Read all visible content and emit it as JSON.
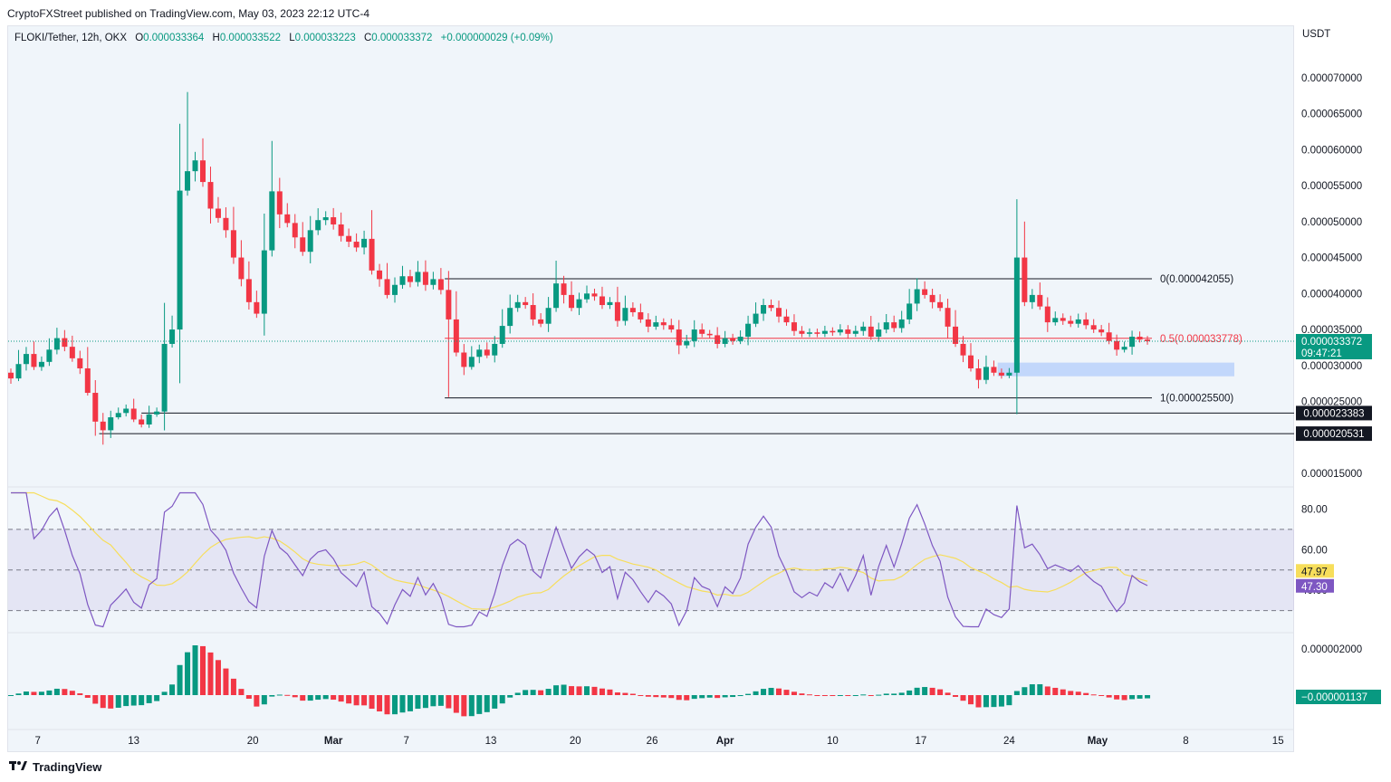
{
  "header": {
    "published": "CryptoFXStreet published on TradingView.com, May 03, 2023 22:12 UTC-4"
  },
  "legend": {
    "symbol": "FLOKI/Tether, 12h, OKX",
    "o_label": "O",
    "o": "0.000033364",
    "h_label": "H",
    "h": "0.000033522",
    "l_label": "L",
    "l": "0.000033223",
    "c_label": "C",
    "c": "0.000033372",
    "change": "+0.000000029 (+0.09%)"
  },
  "footer": {
    "brand": "TradingView"
  },
  "colors": {
    "up": "#089981",
    "down": "#f23645",
    "rsi": "#7e57c2",
    "rsi_ma": "#f7de5b",
    "zone": "#bdd4fb",
    "fib_mid": "#f23645",
    "bg": "#f0f5fa"
  },
  "chart_data": [
    {
      "type": "candlestick",
      "currency_label": "USDT",
      "y_ticks": [
        "0.000070000",
        "0.000065000",
        "0.000060000",
        "0.000055000",
        "0.000050000",
        "0.000045000",
        "0.000040000",
        "0.000035000",
        "0.000030000",
        "0.000025000",
        "0.000015000"
      ],
      "x_ticks": [
        "7",
        "13",
        "20",
        "Mar",
        "7",
        "13",
        "20",
        "26",
        "Apr",
        "10",
        "17",
        "24",
        "May",
        "8",
        "15"
      ],
      "ylim": [
        1.35e-05,
        7.45e-05
      ],
      "closes": [
        2.82e-05,
        3.02e-05,
        3.16e-05,
        2.98e-05,
        3.05e-05,
        3.22e-05,
        3.38e-05,
        3.26e-05,
        3.1e-05,
        2.96e-05,
        2.62e-05,
        2.22e-05,
        2.1e-05,
        2.28e-05,
        2.34e-05,
        2.4e-05,
        2.25e-05,
        2.18e-05,
        2.32e-05,
        2.36e-05,
        3.3e-05,
        3.5e-05,
        5.43e-05,
        5.7e-05,
        5.85e-05,
        5.55e-05,
        5.18e-05,
        5.05e-05,
        4.88e-05,
        4.5e-05,
        4.2e-05,
        3.88e-05,
        3.72e-05,
        4.6e-05,
        5.42e-05,
        5.1e-05,
        4.98e-05,
        4.78e-05,
        4.58e-05,
        4.88e-05,
        5.02e-05,
        5.06e-05,
        4.96e-05,
        4.8e-05,
        4.72e-05,
        4.64e-05,
        4.76e-05,
        4.32e-05,
        4.2e-05,
        3.98e-05,
        4.12e-05,
        4.24e-05,
        4.16e-05,
        4.3e-05,
        4.12e-05,
        4.2e-05,
        4.05e-05,
        3.64e-05,
        3.18e-05,
        2.98e-05,
        3.12e-05,
        3.22e-05,
        3.14e-05,
        3.3e-05,
        3.55e-05,
        3.8e-05,
        3.88e-05,
        3.84e-05,
        3.64e-05,
        3.58e-05,
        3.8e-05,
        4.14e-05,
        3.98e-05,
        3.8e-05,
        3.92e-05,
        4e-05,
        3.96e-05,
        3.84e-05,
        3.88e-05,
        3.62e-05,
        3.8e-05,
        3.74e-05,
        3.64e-05,
        3.54e-05,
        3.6e-05,
        3.56e-05,
        3.5e-05,
        3.28e-05,
        3.34e-05,
        3.5e-05,
        3.44e-05,
        3.42e-05,
        3.3e-05,
        3.38e-05,
        3.34e-05,
        3.4e-05,
        3.58e-05,
        3.72e-05,
        3.84e-05,
        3.8e-05,
        3.68e-05,
        3.6e-05,
        3.48e-05,
        3.44e-05,
        3.46e-05,
        3.44e-05,
        3.48e-05,
        3.46e-05,
        3.5e-05,
        3.44e-05,
        3.48e-05,
        3.54e-05,
        3.4e-05,
        3.5e-05,
        3.6e-05,
        3.52e-05,
        3.64e-05,
        3.86e-05,
        4.06e-05,
        3.98e-05,
        3.88e-05,
        3.8e-05,
        3.54e-05,
        3.3e-05,
        3.14e-05,
        2.96e-05,
        2.8e-05,
        2.98e-05,
        2.9e-05,
        2.86e-05,
        2.9e-05,
        4.5e-05,
        3.88e-05,
        3.98e-05,
        3.82e-05,
        3.6e-05,
        3.66e-05,
        3.62e-05,
        3.58e-05,
        3.64e-05,
        3.56e-05,
        3.5e-05,
        3.46e-05,
        3.34e-05,
        3.22e-05,
        3.26e-05,
        3.4e-05,
        3.36e-05,
        3.337e-05
      ],
      "fib": {
        "top_label": "0(0.000042055)",
        "top": 4.2055e-05,
        "mid_label": "0.5(0.000033778)",
        "mid": 3.3778e-05,
        "bottom_label": "1(0.000025500)",
        "bottom": 2.55e-05
      },
      "support_levels": [
        {
          "label": "0.000023383",
          "value": 2.3383e-05
        },
        {
          "label": "0.000020531",
          "value": 2.0531e-05
        }
      ],
      "demand_zone": {
        "low": 2.85e-05,
        "high": 3.04e-05
      },
      "last_price": {
        "label": "0.000033372",
        "countdown": "09:47:21",
        "value": 3.3372e-05
      }
    },
    {
      "type": "line",
      "name": "RSI",
      "y_ticks": [
        "80.00",
        "60.00",
        "40.00"
      ],
      "ylim": [
        20,
        90
      ],
      "bands": {
        "upper": 70,
        "middle": 50,
        "lower": 30
      },
      "rsi_label": "47.30",
      "rsi_ma_label": "47.97"
    },
    {
      "type": "bar",
      "name": "MACD histogram",
      "y_ticks": [
        "0.000002000"
      ],
      "last_label": "−0.000001137"
    }
  ]
}
